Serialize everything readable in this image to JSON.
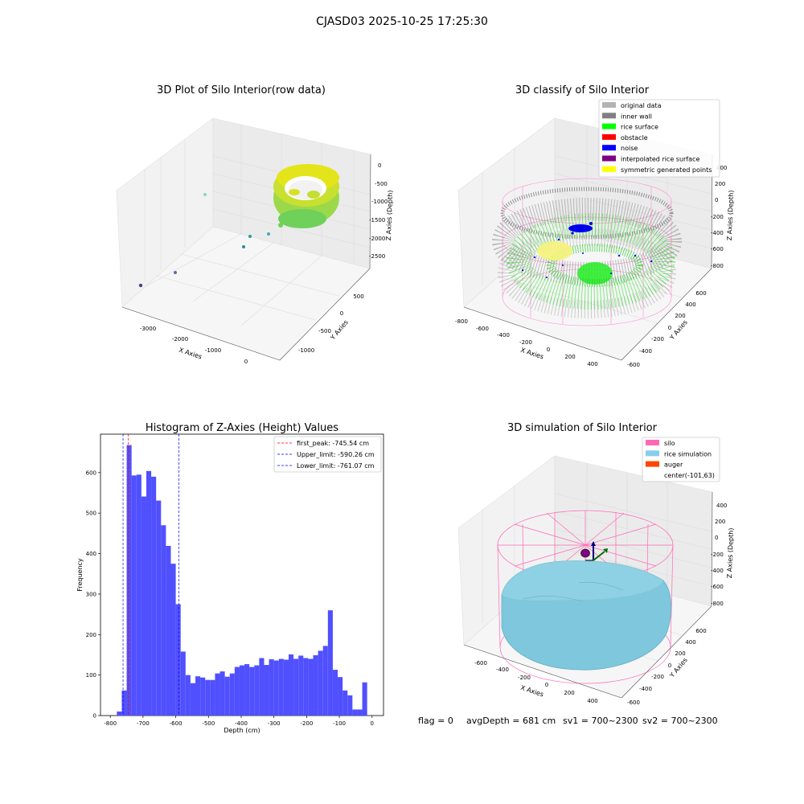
{
  "figure": {
    "suptitle": "CJASD03 2025-10-25 17:25:30",
    "footer": {
      "flag": "flag = 0",
      "avg_depth": "avgDepth = 681 cm",
      "sv1": "sv1 = 700~2300",
      "sv2": "sv2 = 700~2300"
    }
  },
  "panel_raw": {
    "title": "3D Plot of Silo Interior(row data)",
    "xlabel": "X Axies",
    "ylabel": "Y Axies",
    "zlabel": "Z Axies (Depth)",
    "xticks": [
      "-3000",
      "-2000",
      "-1000",
      "0"
    ],
    "yticks": [
      "500",
      "0",
      "-500",
      "-1000"
    ],
    "zticks": [
      "0",
      "-500",
      "-1000",
      "-1500",
      "-2000",
      "-2500"
    ]
  },
  "panel_classify": {
    "title": "3D classify of Silo Interior",
    "xlabel": "X Axies",
    "ylabel": "Y Axies",
    "zlabel": "Z Axies (Depth)",
    "xticks": [
      "-800",
      "-600",
      "-400",
      "-200",
      "0",
      "200",
      "400"
    ],
    "yticks": [
      "600",
      "400",
      "200",
      "0",
      "-200",
      "-400",
      "-600"
    ],
    "zticks": [
      "400",
      "200",
      "0",
      "-200",
      "-400",
      "-600",
      "-800"
    ],
    "legend": [
      {
        "label": "original data",
        "color": "#b3b3b3"
      },
      {
        "label": "inner wall",
        "color": "#808080"
      },
      {
        "label": "rice surface",
        "color": "#00ff00"
      },
      {
        "label": "obstacle",
        "color": "#ff0000"
      },
      {
        "label": "noise",
        "color": "#0000ff"
      },
      {
        "label": "interpolated rice surface",
        "color": "#800080"
      },
      {
        "label": "symmetric generated points",
        "color": "#ffff00"
      }
    ]
  },
  "panel_sim": {
    "title": "3D simulation of Silo Interior",
    "xlabel": "X Axies",
    "ylabel": "Y Axies",
    "zlabel": "Z Axies (Depth)",
    "xticks": [
      "-600",
      "-400",
      "-200",
      "0",
      "200",
      "400"
    ],
    "yticks": [
      "600",
      "400",
      "200",
      "0",
      "-200",
      "-400",
      "-600"
    ],
    "zticks": [
      "400",
      "200",
      "0",
      "-200",
      "-400",
      "-600",
      "-800"
    ],
    "legend": [
      {
        "label": "silo",
        "color": "#ff69b4"
      },
      {
        "label": "rice simulation",
        "color": "#87ceeb"
      },
      {
        "label": "auger",
        "color": "#ff4500"
      },
      {
        "label": "center(-101,63)",
        "color": null
      }
    ]
  },
  "chart_data": {
    "type": "bar",
    "title": "Histogram of Z-Axies (Height) Values",
    "xlabel": "Depth (cm)",
    "ylabel": "Frequency",
    "xlim": [
      -830,
      35
    ],
    "ylim": [
      0,
      695
    ],
    "bin_width": 15,
    "bin_start": -780,
    "xticks": [
      -800,
      -700,
      -600,
      -500,
      -400,
      -300,
      -200,
      -100,
      0
    ],
    "yticks": [
      0,
      100,
      200,
      300,
      400,
      500,
      600
    ],
    "bar_color": "#5050ff",
    "values": [
      10,
      62,
      668,
      593,
      595,
      541,
      604,
      590,
      531,
      470,
      419,
      375,
      275,
      158,
      100,
      80,
      97,
      94,
      88,
      88,
      104,
      109,
      96,
      104,
      120,
      124,
      127,
      120,
      124,
      142,
      125,
      139,
      136,
      140,
      138,
      151,
      140,
      148,
      142,
      140,
      149,
      160,
      172,
      260,
      113,
      95,
      62,
      50,
      15,
      15,
      82
    ],
    "vlines": [
      {
        "label": "first_peak: -745.54 cm",
        "x": -745.54,
        "color": "#ff0000"
      },
      {
        "label": "Upper_limit: -590.26 cm",
        "x": -590.26,
        "color": "#0000ff"
      },
      {
        "label": "Lower_limit: -761.07 cm",
        "x": -761.07,
        "color": "#0000ff"
      }
    ],
    "legend_position": "upper right",
    "grid": false
  }
}
